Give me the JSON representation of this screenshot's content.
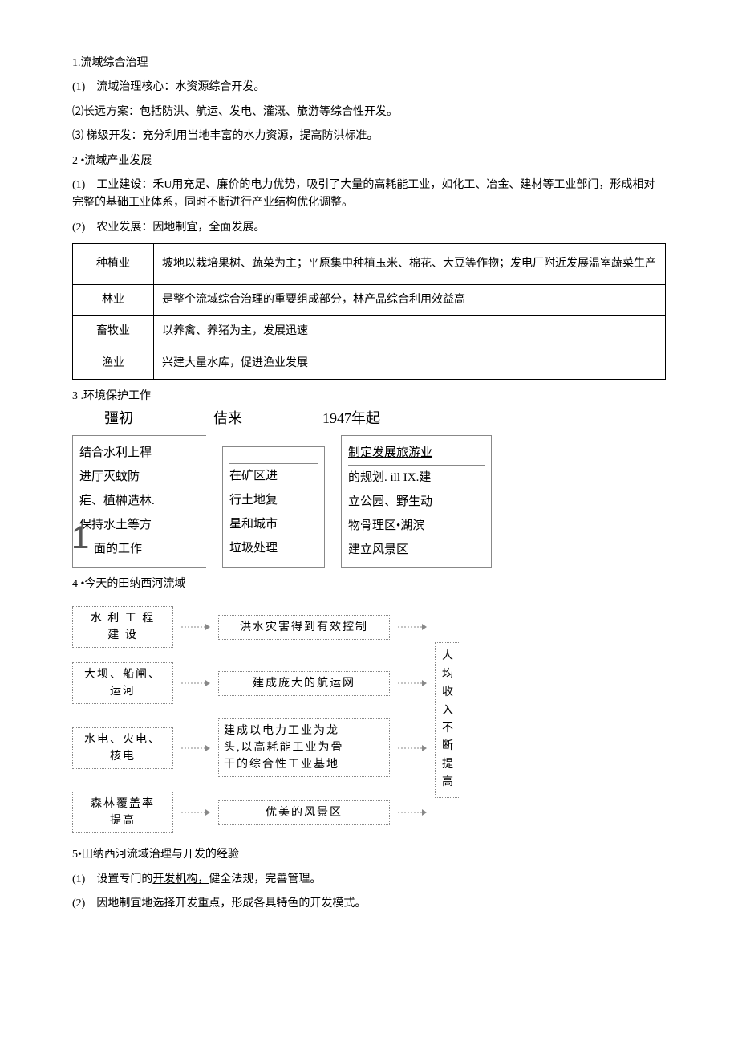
{
  "section1": {
    "title": "1.流域综合治理",
    "i1": "(1)　流域治理核心：水资源综合开发。",
    "i2": "⑵长远方案：包括防洪、航运、发电、灌溉、旅游等综合性开发。",
    "i3_a": "⑶ 梯级开发：充分利用当地丰富的水",
    "i3_u": "力资源，提高",
    "i3_b": "防洪标准。"
  },
  "section2": {
    "title": "2 •流域产业发展",
    "i1": "(1)　工业建设：禾U用充足、廉价的电力优势，吸引了大量的高耗能工业，如化工、冶金、建材等工业部门，形成相对完整的基础工业体系，同时不断进行产业结构优化调整。",
    "i2": "(2)　农业发展：因地制宜，全面发展。",
    "table": {
      "rows": [
        [
          "种植业",
          "坡地以栽培果树、蔬菜为主；平原集中种植玉米、棉花、大豆等作物；发电厂附近发展温室蔬菜生产"
        ],
        [
          "林业",
          "是整个流域综合治理的重要组成部分，林产品综合利用效益高"
        ],
        [
          "畜牧业",
          "以养禽、养猪为主，发展迅速"
        ],
        [
          "渔业",
          "兴建大量水库，促进渔业发展"
        ]
      ]
    }
  },
  "section3": {
    "title": "3 .环境保护工作",
    "headers": [
      "彊初",
      "佶来",
      "1947年起"
    ],
    "col1": [
      "结合水利上稈",
      "进厅灭蚊防",
      "疟、植榊造林.",
      "保持水土等方",
      "面的工作"
    ],
    "col2": [
      "在矿区进",
      "行土地复",
      "星和城市",
      "垃圾处理"
    ],
    "col3_u": "制定发展旅游业",
    "col3_rest": [
      "的规划. ill IX.建",
      "立公园、野生动",
      "物骨理区•湖滨",
      "建立风景区"
    ]
  },
  "section4": {
    "title": "4 •今天的田纳西河流域",
    "left": [
      "水 利 工 程\n建 设",
      "大坝、船闸、\n运河",
      "水电、火电、\n核电",
      "森林覆盖率\n提高"
    ],
    "mid": [
      "洪水灾害得到有效控制",
      "建成庞大的航运网",
      "建成以电力工业为龙\n头,以高耗能工业为骨\n干的综合性工业基地",
      "优美的风景区"
    ],
    "right": "人均收入不断提高"
  },
  "section5": {
    "title": "5•田纳西河流域治理与开发的经验",
    "i1_a": "(1)　设置专门的",
    "i1_u": "开发机构，",
    "i1_b": "健全法规，完善管理。",
    "i2": "(2)　因地制宜地选择开发重点，形成各具特色的开发模式。"
  },
  "colors": {
    "text": "#000000",
    "border": "#888888",
    "background": "#ffffff"
  }
}
